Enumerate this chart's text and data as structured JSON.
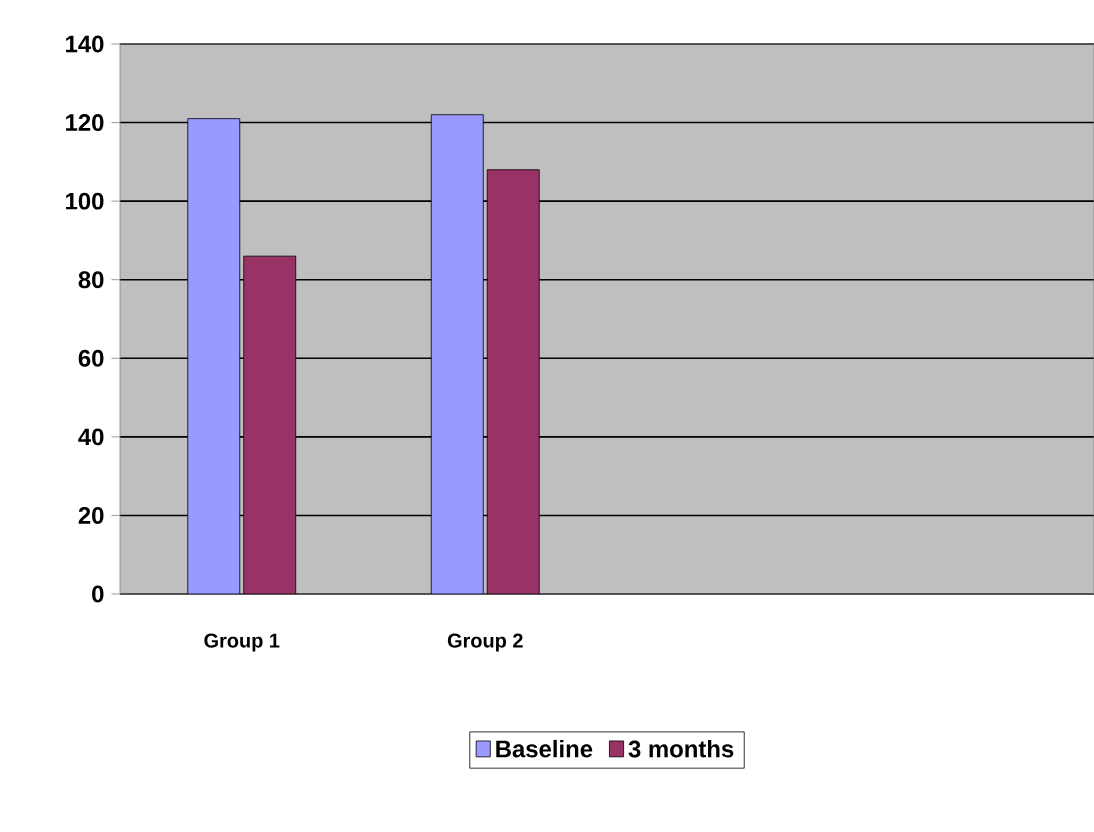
{
  "chart_data": {
    "type": "bar",
    "categories": [
      "Group 1",
      "Group 2",
      null,
      null
    ],
    "series": [
      {
        "name": "Baseline",
        "color": "#9999ff",
        "values": [
          121,
          122,
          null,
          null
        ]
      },
      {
        "name": "3 months",
        "color": "#993366",
        "values": [
          86,
          108,
          null,
          null
        ]
      }
    ],
    "ylim": [
      0,
      140
    ],
    "yticks": [
      0,
      20,
      40,
      60,
      80,
      100,
      120,
      140
    ],
    "grid": "y",
    "legend": "bottom"
  }
}
